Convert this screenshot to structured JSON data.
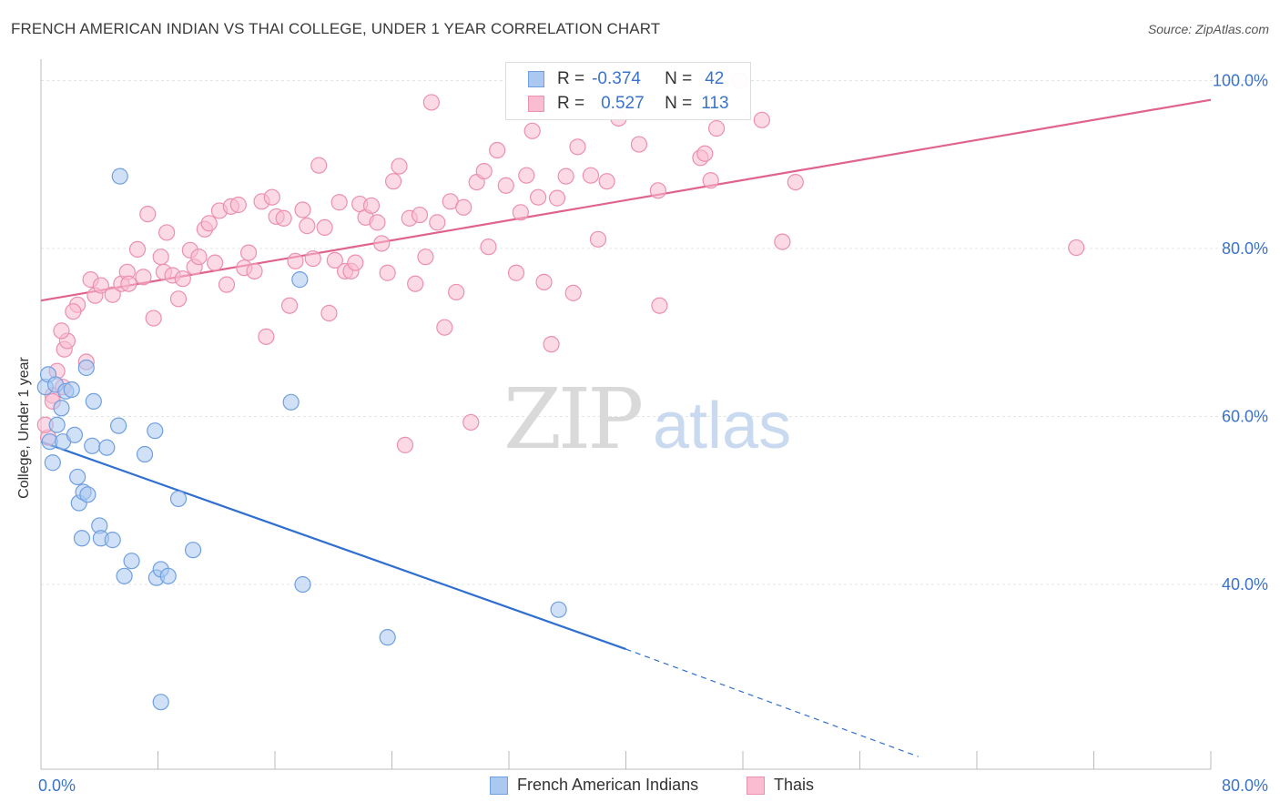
{
  "title": "FRENCH AMERICAN INDIAN VS THAI COLLEGE, UNDER 1 YEAR CORRELATION CHART",
  "source": "Source: ZipAtlas.com",
  "watermark": {
    "zip": "ZIP",
    "atlas": "atlas"
  },
  "legend": {
    "r_label": "R =",
    "n_label": "N =",
    "series": [
      {
        "r": "-0.374",
        "n": "42",
        "color": "#aac8f0",
        "stroke": "#6f9fe0"
      },
      {
        "r": "0.527",
        "n": "113",
        "color": "#f9bcd0",
        "stroke": "#ec8fb0"
      }
    ]
  },
  "bottom_legend": [
    "French American Indians",
    "Thais"
  ],
  "chart_data": {
    "type": "scatter",
    "title": "FRENCH AMERICAN INDIAN VS THAI COLLEGE, UNDER 1 YEAR CORRELATION CHART",
    "xlabel": "",
    "ylabel": "College, Under 1 year",
    "xlim": [
      0,
      80
    ],
    "ylim": [
      18,
      102
    ],
    "x_ticks": [
      "0.0%",
      "80.0%"
    ],
    "y_ticks": [
      {
        "value": 40,
        "label": "40.0%"
      },
      {
        "value": 60,
        "label": "60.0%"
      },
      {
        "value": 80,
        "label": "80.0%"
      },
      {
        "value": 100,
        "label": "100.0%"
      }
    ],
    "grid": true,
    "legend_position": "bottom",
    "series": [
      {
        "name": "French American Indians",
        "color": "#6f9fe0",
        "fill": "#aac8f0",
        "trend": {
          "x0": 0,
          "y0": 57,
          "x1": 40,
          "y1": 32.3,
          "dash_to_x": 60,
          "dash_to_y": 19.5,
          "color": "#2f6fd0"
        },
        "points": [
          [
            0.3,
            63.5
          ],
          [
            0.5,
            65
          ],
          [
            0.6,
            57
          ],
          [
            0.8,
            54.5
          ],
          [
            1.0,
            63.8
          ],
          [
            1.1,
            59
          ],
          [
            1.4,
            61
          ],
          [
            1.5,
            57
          ],
          [
            1.7,
            63
          ],
          [
            2.1,
            63.2
          ],
          [
            2.3,
            57.8
          ],
          [
            2.5,
            52.8
          ],
          [
            2.6,
            49.7
          ],
          [
            2.8,
            45.5
          ],
          [
            2.9,
            51
          ],
          [
            3.2,
            50.7
          ],
          [
            3.1,
            65.8
          ],
          [
            3.5,
            56.5
          ],
          [
            3.6,
            61.8
          ],
          [
            4.0,
            47
          ],
          [
            4.1,
            45.5
          ],
          [
            4.5,
            56.3
          ],
          [
            4.9,
            45.3
          ],
          [
            5.3,
            58.9
          ],
          [
            5.7,
            41
          ],
          [
            6.2,
            42.8
          ],
          [
            7.1,
            55.5
          ],
          [
            7.8,
            58.3
          ],
          [
            7.9,
            40.8
          ],
          [
            8.2,
            41.8
          ],
          [
            8.7,
            41
          ],
          [
            9.4,
            50.2
          ],
          [
            10.4,
            44.1
          ],
          [
            5.4,
            88.6
          ],
          [
            17.7,
            76.3
          ],
          [
            17.1,
            61.7
          ],
          [
            17.9,
            40
          ],
          [
            23.7,
            33.7
          ],
          [
            35.4,
            37
          ],
          [
            8.2,
            26
          ]
        ]
      },
      {
        "name": "Thais",
        "color": "#ec8fb0",
        "fill": "#f9bcd0",
        "trend": {
          "x0": 0,
          "y0": 73.8,
          "x1": 80,
          "y1": 97.7,
          "color": "#e0628f"
        },
        "points": [
          [
            0.5,
            57.5
          ],
          [
            0.8,
            62.5
          ],
          [
            1.1,
            65.4
          ],
          [
            1.5,
            63.5
          ],
          [
            1.6,
            68
          ],
          [
            1.8,
            69
          ],
          [
            2.5,
            73.3
          ],
          [
            3.1,
            66.5
          ],
          [
            3.4,
            76.3
          ],
          [
            3.7,
            74.4
          ],
          [
            4.1,
            75.6
          ],
          [
            4.9,
            74.5
          ],
          [
            5.5,
            75.8
          ],
          [
            5.9,
            77.2
          ],
          [
            6.0,
            75.8
          ],
          [
            6.6,
            79.9
          ],
          [
            7.0,
            76.6
          ],
          [
            7.3,
            84.1
          ],
          [
            7.7,
            71.7
          ],
          [
            8.2,
            79
          ],
          [
            8.4,
            77.2
          ],
          [
            8.6,
            81.9
          ],
          [
            9.0,
            76.8
          ],
          [
            9.4,
            74
          ],
          [
            9.7,
            76.4
          ],
          [
            10.2,
            79.8
          ],
          [
            10.5,
            77.8
          ],
          [
            10.8,
            79
          ],
          [
            11.2,
            82.3
          ],
          [
            11.5,
            83
          ],
          [
            11.9,
            78.3
          ],
          [
            12.2,
            84.5
          ],
          [
            12.7,
            75.7
          ],
          [
            13.0,
            85
          ],
          [
            13.5,
            85.2
          ],
          [
            13.9,
            77.7
          ],
          [
            14.2,
            79.5
          ],
          [
            14.6,
            77.3
          ],
          [
            15.1,
            85.6
          ],
          [
            15.4,
            69.5
          ],
          [
            15.8,
            86.1
          ],
          [
            16.1,
            83.8
          ],
          [
            16.6,
            83.6
          ],
          [
            17.0,
            73.2
          ],
          [
            17.4,
            78.5
          ],
          [
            17.9,
            84.6
          ],
          [
            18.2,
            82.7
          ],
          [
            18.6,
            78.8
          ],
          [
            19.0,
            89.9
          ],
          [
            19.4,
            82.5
          ],
          [
            19.7,
            72.3
          ],
          [
            20.1,
            78.6
          ],
          [
            20.4,
            85.5
          ],
          [
            20.8,
            77.3
          ],
          [
            21.2,
            77.3
          ],
          [
            21.5,
            78.3
          ],
          [
            21.8,
            85.3
          ],
          [
            22.2,
            83.7
          ],
          [
            22.6,
            85.1
          ],
          [
            23.0,
            83.1
          ],
          [
            23.3,
            80.6
          ],
          [
            23.7,
            77.1
          ],
          [
            24.1,
            88
          ],
          [
            24.5,
            89.8
          ],
          [
            24.9,
            56.6
          ],
          [
            25.2,
            83.6
          ],
          [
            25.6,
            75.8
          ],
          [
            25.9,
            84
          ],
          [
            26.3,
            79
          ],
          [
            26.7,
            97.4
          ],
          [
            27.1,
            83.1
          ],
          [
            27.6,
            70.6
          ],
          [
            28.0,
            85.6
          ],
          [
            28.4,
            74.8
          ],
          [
            28.9,
            84.9
          ],
          [
            29.4,
            59.3
          ],
          [
            29.8,
            87.9
          ],
          [
            30.3,
            89.2
          ],
          [
            30.6,
            80.2
          ],
          [
            31.2,
            91.7
          ],
          [
            31.8,
            87.5
          ],
          [
            32.5,
            77.1
          ],
          [
            32.8,
            84.3
          ],
          [
            33.2,
            88.7
          ],
          [
            33.6,
            94
          ],
          [
            34.0,
            86.1
          ],
          [
            34.4,
            76
          ],
          [
            34.9,
            68.6
          ],
          [
            35.3,
            86
          ],
          [
            35.9,
            88.6
          ],
          [
            36.4,
            74.7
          ],
          [
            36.7,
            92.1
          ],
          [
            37.6,
            88.7
          ],
          [
            38.1,
            81.1
          ],
          [
            38.7,
            88
          ],
          [
            39.5,
            95.5
          ],
          [
            40.9,
            92.4
          ],
          [
            42.2,
            86.9
          ],
          [
            42.3,
            73.2
          ],
          [
            45.1,
            90.8
          ],
          [
            45.4,
            91.3
          ],
          [
            45.8,
            88.1
          ],
          [
            46.2,
            94.3
          ],
          [
            47.8,
            100
          ],
          [
            49.3,
            95.3
          ],
          [
            50.7,
            80.8
          ],
          [
            51.6,
            87.9
          ],
          [
            70.8,
            80.1
          ],
          [
            0.8,
            61.8
          ],
          [
            0.3,
            59
          ],
          [
            1.4,
            70.2
          ],
          [
            2.2,
            72.5
          ]
        ]
      }
    ]
  }
}
